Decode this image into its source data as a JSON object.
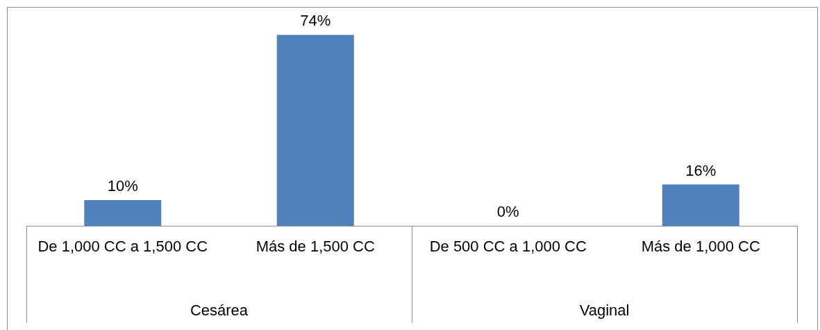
{
  "chart_data": {
    "type": "bar",
    "categories": [
      "De 1,000 CC a 1,500 CC",
      "Más de 1,500 CC",
      "De 500 CC a 1,000 CC",
      "Más de 1,000 CC"
    ],
    "values": [
      10,
      74,
      0,
      16
    ],
    "value_labels": [
      "10%",
      "74%",
      "0%",
      "16%"
    ],
    "color": "#4f81bd",
    "annotations": [
      "Cesárea",
      "Vaginal"
    ],
    "legend": false
  }
}
